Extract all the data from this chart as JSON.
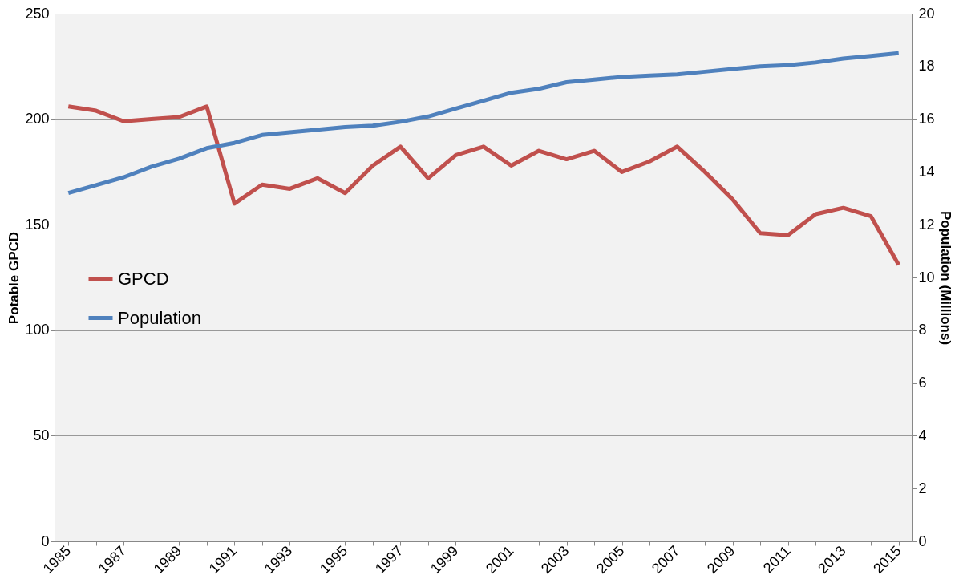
{
  "chart_data": {
    "type": "line",
    "categories": [
      "1985",
      null,
      "1987",
      null,
      "1989",
      null,
      "1991",
      null,
      "1993",
      null,
      "1995",
      null,
      "1997",
      null,
      "1999",
      null,
      "2001",
      null,
      "2003",
      null,
      "2005",
      null,
      "2007",
      null,
      "2009",
      null,
      "2011",
      null,
      "2013",
      null,
      "2015"
    ],
    "series": [
      {
        "name": "GPCD",
        "color": "#c0504d",
        "axis": "y",
        "values": [
          206,
          204,
          199,
          200,
          201,
          206,
          160,
          169,
          167,
          172,
          165,
          178,
          187,
          172,
          183,
          187,
          178,
          185,
          181,
          185,
          175,
          180,
          187,
          175,
          162,
          146,
          145,
          155,
          158,
          154,
          131
        ]
      },
      {
        "name": "Population",
        "color": "#4f81bd",
        "axis": "y2",
        "values": [
          13.2,
          13.5,
          13.8,
          14.2,
          14.5,
          14.9,
          15.1,
          15.4,
          15.5,
          15.6,
          15.7,
          15.75,
          15.9,
          16.1,
          16.4,
          16.7,
          17.0,
          17.15,
          17.4,
          17.5,
          17.6,
          17.65,
          17.7,
          17.8,
          17.9,
          18.0,
          18.05,
          18.15,
          18.3,
          18.4,
          18.5
        ]
      }
    ],
    "ylabel": "Potable GPCD",
    "y2label": "Population  (Millions)",
    "ylim": [
      0,
      250
    ],
    "yticks": [
      0,
      50,
      100,
      150,
      200,
      250
    ],
    "y2lim": [
      0,
      20
    ],
    "y2ticks": [
      0,
      2,
      4,
      6,
      8,
      10,
      12,
      14,
      16,
      18,
      20
    ],
    "grid": "y",
    "legend": "left",
    "line_style": "solid"
  }
}
